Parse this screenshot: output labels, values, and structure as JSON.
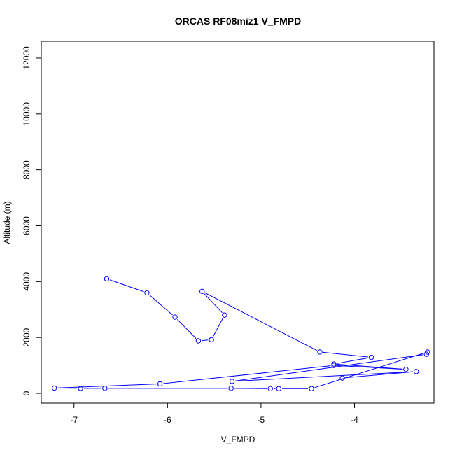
{
  "chart_data": {
    "type": "line",
    "title": "ORCAS RF08miz1 V_FMPD",
    "xlabel": "V_FMPD",
    "ylabel": "Altitude (m)",
    "xlim": [
      -7.35,
      -3.15
    ],
    "ylim": [
      -350,
      12600
    ],
    "x_ticks": [
      -7,
      -6,
      -5,
      -4
    ],
    "x_tick_labels": [
      "-7",
      "-6",
      "-5",
      "-4"
    ],
    "y_ticks": [
      0,
      2000,
      4000,
      6000,
      8000,
      10000,
      12000
    ],
    "y_tick_labels": [
      "0",
      "2000",
      "4000",
      "6000",
      "8000",
      "10000",
      "12000"
    ],
    "grid": false,
    "markers": "open-circle",
    "colors": {
      "series": "#0000ff",
      "axes": "#000000"
    },
    "series": [
      {
        "x": [
          -6.65,
          -6.22,
          -5.92,
          -5.67,
          -5.53,
          -5.39,
          -5.63,
          -4.37,
          -3.82,
          -4.22,
          -3.45,
          -4.22,
          -6.08,
          -7.21,
          -6.93,
          -6.67,
          -5.32,
          -4.9,
          -4.81,
          -4.46,
          -3.22,
          -3.23,
          -5.31,
          -3.34,
          -4.13
        ],
        "y": [
          4100,
          3600,
          2730,
          1880,
          1920,
          2800,
          3650,
          1480,
          1290,
          1050,
          860,
          1000,
          340,
          190,
          180,
          180,
          180,
          170,
          170,
          170,
          1480,
          1400,
          430,
          780,
          550
        ]
      }
    ]
  }
}
